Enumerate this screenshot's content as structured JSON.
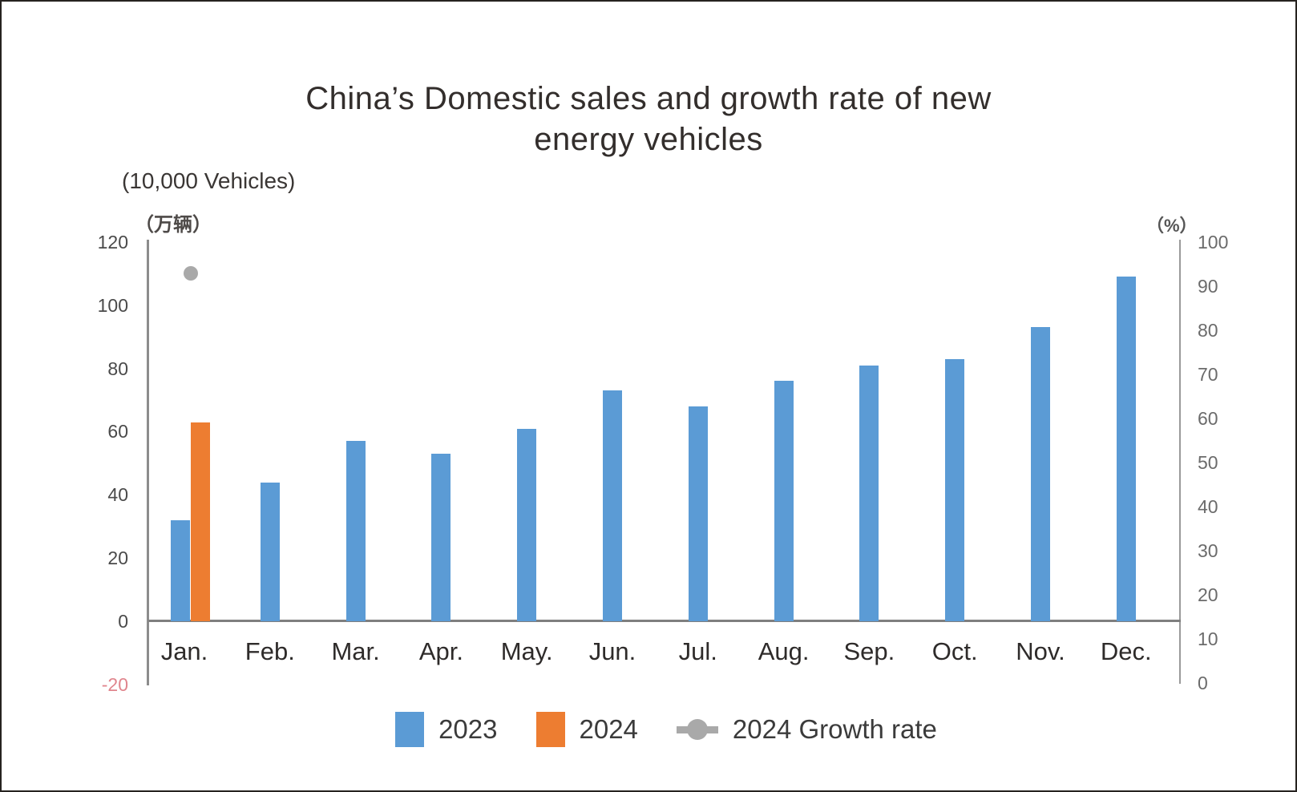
{
  "title": "China’s Domestic sales and growth rate of new energy vehicles",
  "left_axis": {
    "unit_en": "(10,000 Vehicles)",
    "unit_cn": "（万辆）",
    "ticks": [
      120,
      100,
      80,
      60,
      40,
      20,
      0,
      -20
    ],
    "tick_color": "#4a4a4a",
    "negative_tick_color": "#e0858d"
  },
  "right_axis": {
    "unit": "（%）",
    "ticks": [
      100,
      90,
      80,
      70,
      60,
      50,
      40,
      30,
      20,
      10,
      0
    ],
    "tick_color": "#6b6b6b"
  },
  "chart_data": {
    "type": "bar",
    "title": "China’s Domestic sales and growth rate of new energy vehicles",
    "categories": [
      "Jan.",
      "Feb.",
      "Mar.",
      "Apr.",
      "May.",
      "Jun.",
      "Jul.",
      "Aug.",
      "Sep.",
      "Oct.",
      "Nov.",
      "Dec."
    ],
    "series": [
      {
        "name": "2023",
        "type": "bar",
        "axis": "left",
        "color": "#5b9bd5",
        "values": [
          32,
          44,
          57,
          53,
          61,
          73,
          68,
          76,
          81,
          83,
          93,
          109
        ]
      },
      {
        "name": "2024",
        "type": "bar",
        "axis": "left",
        "color": "#ed7d31",
        "values": [
          63,
          null,
          null,
          null,
          null,
          null,
          null,
          null,
          null,
          null,
          null,
          null
        ]
      },
      {
        "name": "2024 Growth rate",
        "type": "scatter",
        "axis": "right",
        "color": "#a9a9a9",
        "values": [
          93,
          null,
          null,
          null,
          null,
          null,
          null,
          null,
          null,
          null,
          null,
          null
        ]
      }
    ],
    "left_ylim": [
      -20,
      120
    ],
    "right_ylim": [
      0,
      100
    ],
    "grid": false,
    "legend_position": "bottom"
  },
  "legend": {
    "items": [
      {
        "label": "2023",
        "marker": "square",
        "color": "#5b9bd5"
      },
      {
        "label": "2024",
        "marker": "square",
        "color": "#ed7d31"
      },
      {
        "label": "2024 Growth rate",
        "marker": "line-dot",
        "color": "#a9a9a9"
      }
    ]
  }
}
